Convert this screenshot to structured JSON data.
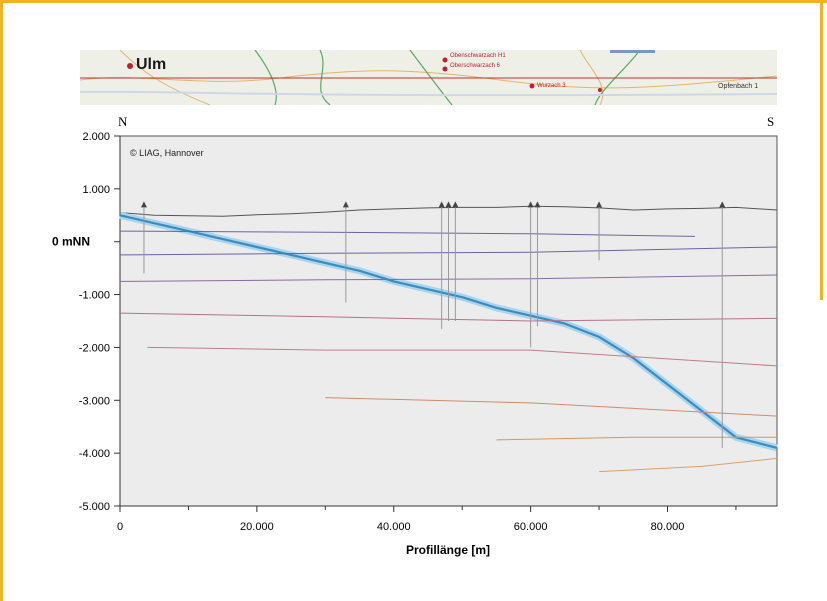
{
  "map": {
    "city": "Ulm",
    "places": [
      {
        "name": "Obenschwarzach H1",
        "dot": true
      },
      {
        "name": "Oberschwarzach 6",
        "dot": true
      },
      {
        "name": "Wurzach 3",
        "dot": true
      },
      {
        "name": "Opfenbach 1",
        "dot": false
      }
    ]
  },
  "directions": {
    "left": "N",
    "right": "S"
  },
  "chart_data": {
    "type": "line",
    "xlabel": "Profillänge [m]",
    "ylabel": "",
    "xlim": [
      0,
      96000
    ],
    "ylim": [
      -5000,
      2000
    ],
    "x_ticks": [
      "0",
      "20.000",
      "40.000",
      "60.000",
      "80.000"
    ],
    "x_tick_values": [
      0,
      20000,
      40000,
      60000,
      80000
    ],
    "y_ticks": [
      "2.000",
      "1.000",
      "0 mNN",
      "-1.000",
      "-2.000",
      "-3.000",
      "-4.000",
      "-5.000"
    ],
    "y_tick_values": [
      2000,
      1000,
      0,
      -1000,
      -2000,
      -3000,
      -4000,
      -5000
    ],
    "annotation": "© LIAG, Hannover",
    "series": [
      {
        "role": "surface",
        "color": "#555555",
        "x": [
          0,
          5000,
          10000,
          15000,
          20000,
          25000,
          30000,
          35000,
          40000,
          45000,
          50000,
          55000,
          60000,
          65000,
          70000,
          75000,
          80000,
          85000,
          90000,
          96000
        ],
        "y": [
          550,
          500,
          490,
          480,
          510,
          530,
          560,
          600,
          620,
          640,
          650,
          650,
          670,
          660,
          640,
          600,
          620,
          630,
          650,
          600
        ]
      },
      {
        "role": "basement",
        "color": "#3a8cc0",
        "x": [
          0,
          5000,
          10000,
          15000,
          20000,
          25000,
          30000,
          35000,
          40000,
          45000,
          50000,
          55000,
          60000,
          65000,
          70000,
          75000,
          80000,
          85000,
          90000,
          96000
        ],
        "y": [
          500,
          350,
          200,
          50,
          -100,
          -250,
          -400,
          -550,
          -750,
          -900,
          -1050,
          -1250,
          -1400,
          -1550,
          -1800,
          -2200,
          -2700,
          -3200,
          -3700,
          -3900
        ]
      },
      {
        "role": "isoline",
        "color": "#6a63a6",
        "x": [
          0,
          30000,
          60000,
          84000
        ],
        "y": [
          200,
          180,
          150,
          100
        ]
      },
      {
        "role": "isoline",
        "color": "#6a63a6",
        "x": [
          0,
          30000,
          60000,
          96000
        ],
        "y": [
          -250,
          -220,
          -200,
          -100
        ]
      },
      {
        "role": "isoline",
        "color": "#8b6aa0",
        "x": [
          0,
          30000,
          60000,
          96000
        ],
        "y": [
          -750,
          -720,
          -700,
          -630
        ]
      },
      {
        "role": "isoline",
        "color": "#b5718a",
        "x": [
          0,
          30000,
          60000,
          96000
        ],
        "y": [
          -1350,
          -1420,
          -1500,
          -1450
        ]
      },
      {
        "role": "isoline",
        "color": "#c27b84",
        "x": [
          4000,
          30000,
          60000,
          96000
        ],
        "y": [
          -2000,
          -2050,
          -2050,
          -2350
        ]
      },
      {
        "role": "isoline",
        "color": "#d18a6c",
        "x": [
          30000,
          60000,
          96000
        ],
        "y": [
          -2950,
          -3050,
          -3300
        ]
      },
      {
        "role": "isoline",
        "color": "#d8955c",
        "x": [
          55000,
          75000,
          96000
        ],
        "y": [
          -3750,
          -3700,
          -3700
        ]
      },
      {
        "role": "isoline",
        "color": "#dba06a",
        "x": [
          70000,
          85000,
          96000
        ],
        "y": [
          -4350,
          -4250,
          -4100
        ]
      }
    ],
    "wells": [
      {
        "x": 3500,
        "depth": -600
      },
      {
        "x": 33000,
        "depth": -1150
      },
      {
        "x": 47000,
        "depth": -1650
      },
      {
        "x": 48000,
        "depth": -1500
      },
      {
        "x": 49000,
        "depth": -1500
      },
      {
        "x": 60000,
        "depth": -2000
      },
      {
        "x": 61000,
        "depth": -1600
      },
      {
        "x": 70000,
        "depth": -350
      },
      {
        "x": 88000,
        "depth": -3900
      }
    ]
  }
}
